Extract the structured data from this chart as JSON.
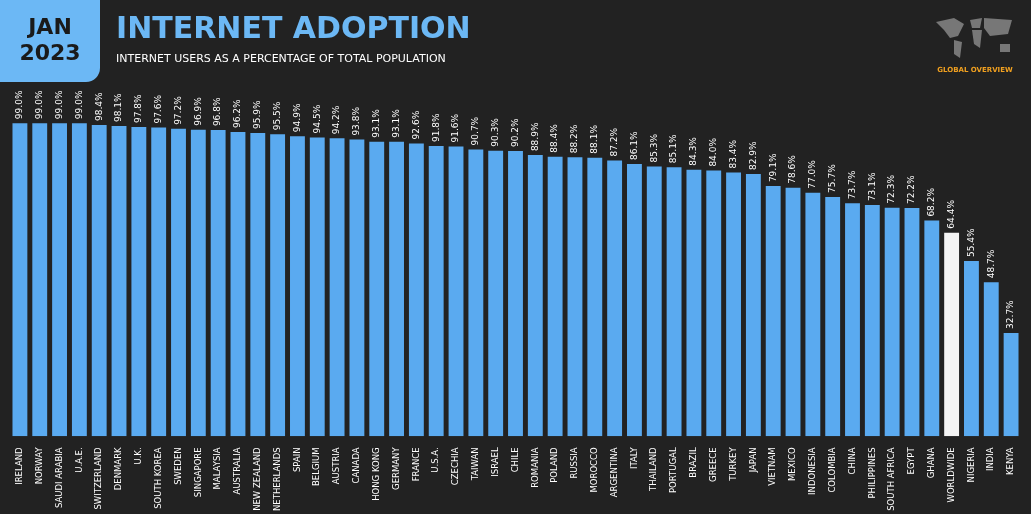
{
  "chart_data": {
    "type": "bar",
    "title": "INTERNET ADOPTION",
    "subtitle": "INTERNET USERS AS A PERCENTAGE OF TOTAL POPULATION",
    "annotations": [
      "JAN 2023",
      "GLOBAL OVERVIEW"
    ],
    "categories": [
      "IRELAND",
      "NORWAY",
      "SAUDI ARABIA",
      "U.A.E.",
      "SWITZERLAND",
      "DENMARK",
      "U.K.",
      "SOUTH KOREA",
      "SWEDEN",
      "SINGAPORE",
      "MALAYSIA",
      "AUSTRALIA",
      "NEW ZEALAND",
      "NETHERLANDS",
      "SPAIN",
      "BELGIUM",
      "AUSTRIA",
      "CANADA",
      "HONG KONG",
      "GERMANY",
      "FRANCE",
      "U.S.A.",
      "CZECHIA",
      "TAIWAN",
      "ISRAEL",
      "CHILE",
      "ROMANIA",
      "POLAND",
      "RUSSIA",
      "MOROCCO",
      "ARGENTINA",
      "ITALY",
      "THAILAND",
      "PORTUGAL",
      "BRAZIL",
      "GREECE",
      "TURKEY",
      "JAPAN",
      "VIETNAM",
      "MEXICO",
      "INDONESIA",
      "COLOMBIA",
      "CHINA",
      "PHILIPPINES",
      "SOUTH AFRICA",
      "EGYPT",
      "GHANA",
      "WORLDWIDE",
      "NIGERIA",
      "INDIA",
      "KENYA"
    ],
    "values": [
      99.0,
      99.0,
      99.0,
      99.0,
      98.4,
      98.1,
      97.8,
      97.6,
      97.2,
      96.9,
      96.8,
      96.2,
      95.9,
      95.5,
      94.9,
      94.5,
      94.2,
      93.8,
      93.1,
      93.1,
      92.6,
      91.8,
      91.6,
      90.7,
      90.3,
      90.2,
      88.9,
      88.4,
      88.2,
      88.1,
      87.2,
      86.1,
      85.3,
      85.1,
      84.3,
      84.0,
      83.4,
      82.9,
      79.1,
      78.6,
      77.0,
      75.7,
      73.7,
      73.1,
      72.3,
      72.2,
      68.2,
      64.4,
      55.4,
      48.7,
      32.7
    ],
    "value_labels": [
      "99.0%",
      "99.0%",
      "99.0%",
      "99.0%",
      "98.4%",
      "98.1%",
      "97.8%",
      "97.6%",
      "97.2%",
      "96.9%",
      "96.8%",
      "96.2%",
      "95.9%",
      "95.5%",
      "94.9%",
      "94.5%",
      "94.2%",
      "93.8%",
      "93.1%",
      "93.1%",
      "92.6%",
      "91.8%",
      "91.6%",
      "90.7%",
      "90.3%",
      "90.2%",
      "88.9%",
      "88.4%",
      "88.2%",
      "88.1%",
      "87.2%",
      "86.1%",
      "85.3%",
      "85.1%",
      "84.3%",
      "84.0%",
      "83.4%",
      "82.9%",
      "79.1%",
      "78.6%",
      "77.0%",
      "75.7%",
      "73.7%",
      "73.1%",
      "72.3%",
      "72.2%",
      "68.2%",
      "64.4%",
      "55.4%",
      "48.7%",
      "32.7%"
    ],
    "colors": [
      "#5aaaf0",
      "#5aaaf0",
      "#5aaaf0",
      "#5aaaf0",
      "#5aaaf0",
      "#5aaaf0",
      "#5aaaf0",
      "#5aaaf0",
      "#5aaaf0",
      "#5aaaf0",
      "#5aaaf0",
      "#5aaaf0",
      "#5aaaf0",
      "#5aaaf0",
      "#5aaaf0",
      "#5aaaf0",
      "#5aaaf0",
      "#5aaaf0",
      "#5aaaf0",
      "#5aaaf0",
      "#5aaaf0",
      "#5aaaf0",
      "#5aaaf0",
      "#5aaaf0",
      "#5aaaf0",
      "#5aaaf0",
      "#5aaaf0",
      "#5aaaf0",
      "#5aaaf0",
      "#5aaaf0",
      "#5aaaf0",
      "#5aaaf0",
      "#5aaaf0",
      "#5aaaf0",
      "#5aaaf0",
      "#5aaaf0",
      "#5aaaf0",
      "#5aaaf0",
      "#5aaaf0",
      "#5aaaf0",
      "#5aaaf0",
      "#5aaaf0",
      "#5aaaf0",
      "#5aaaf0",
      "#5aaaf0",
      "#5aaaf0",
      "#5aaaf0",
      "#f4f4f4",
      "#5aaaf0",
      "#5aaaf0",
      "#5aaaf0"
    ]
  }
}
